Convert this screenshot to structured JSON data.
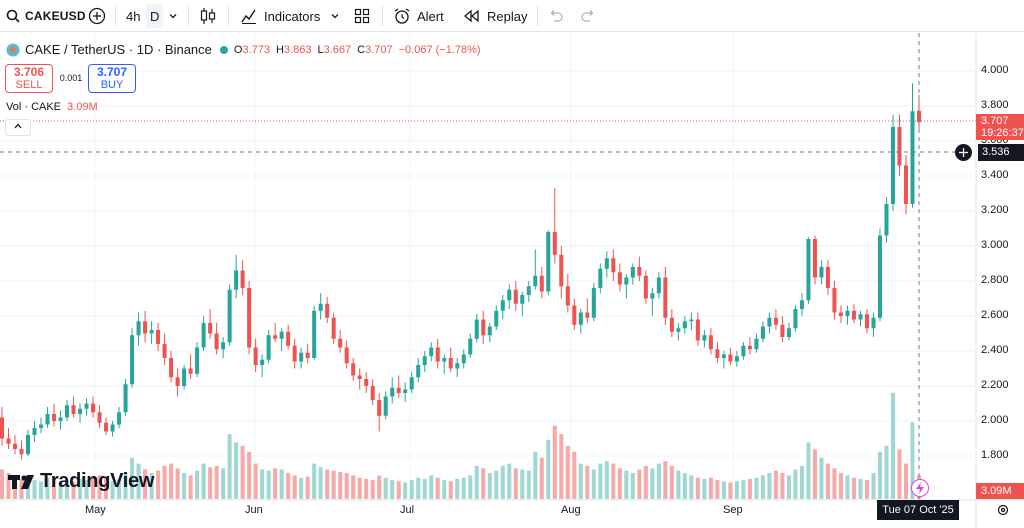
{
  "toolbar": {
    "symbol": "CAKEUSD",
    "interval": "4h",
    "interval_active": "D",
    "indicators_label": "Indicators",
    "alert_label": "Alert",
    "replay_label": "Replay"
  },
  "legend": {
    "title": "CAKE / TetherUS · 1D · Binance",
    "open_label": "O",
    "open": "3.773",
    "high_label": "H",
    "high": "3.863",
    "low_label": "L",
    "low": "3.667",
    "close_label": "C",
    "close": "3.707",
    "change": "−0.067 (−1.78%)"
  },
  "trade": {
    "sell_price": "3.706",
    "sell_label": "SELL",
    "spread": "0.001",
    "buy_price": "3.707",
    "buy_label": "BUY"
  },
  "volume_legend": {
    "label": "Vol · CAKE",
    "value": "3.09M"
  },
  "price_axis": [
    "4.000",
    "3.800",
    "3.600",
    "3.400",
    "3.200",
    "3.000",
    "2.800",
    "2.600",
    "2.400",
    "2.200",
    "2.000",
    "1.800"
  ],
  "current_price": {
    "price": "3.707",
    "countdown": "19:26:37"
  },
  "crosshair_price": "3.536",
  "volume_tag": "3.09M",
  "time_axis": [
    "May",
    "Jun",
    "Jul",
    "Aug",
    "Sep"
  ],
  "crosshair_date": "Tue 07 Oct '25",
  "brand": "TradingView",
  "colors": {
    "up": "#26a69a",
    "down": "#ef5350",
    "up_volume": "#9fd7d2",
    "down_volume": "#f7a9a7"
  },
  "chart_data": {
    "type": "candlestick",
    "title": "CAKE / TetherUS · 1D · Binance",
    "ylim": [
      1.7,
      4.1
    ],
    "x_ticks": [
      "May",
      "Jun",
      "Jul",
      "Aug",
      "Sep"
    ],
    "candles_ohlc": [
      [
        2.02,
        2.08,
        1.86,
        1.9
      ],
      [
        1.9,
        1.96,
        1.84,
        1.87
      ],
      [
        1.87,
        1.92,
        1.81,
        1.84
      ],
      [
        1.84,
        1.89,
        1.78,
        1.81
      ],
      [
        1.81,
        1.95,
        1.8,
        1.92
      ],
      [
        1.92,
        2.0,
        1.88,
        1.96
      ],
      [
        1.96,
        2.02,
        1.93,
        1.98
      ],
      [
        1.98,
        2.08,
        1.96,
        2.04
      ],
      [
        2.04,
        2.1,
        1.97,
        2.0
      ],
      [
        2.0,
        2.06,
        1.95,
        2.02
      ],
      [
        2.02,
        2.12,
        2.0,
        2.09
      ],
      [
        2.09,
        2.14,
        2.02,
        2.04
      ],
      [
        2.04,
        2.1,
        1.99,
        2.07
      ],
      [
        2.07,
        2.13,
        2.03,
        2.1
      ],
      [
        2.1,
        2.14,
        2.02,
        2.05
      ],
      [
        2.05,
        2.09,
        1.96,
        1.99
      ],
      [
        1.99,
        2.02,
        1.92,
        1.94
      ],
      [
        1.94,
        2.0,
        1.91,
        1.98
      ],
      [
        1.98,
        2.08,
        1.96,
        2.05
      ],
      [
        2.05,
        2.24,
        2.03,
        2.21
      ],
      [
        2.21,
        2.53,
        2.19,
        2.49
      ],
      [
        2.49,
        2.62,
        2.43,
        2.57
      ],
      [
        2.57,
        2.63,
        2.45,
        2.5
      ],
      [
        2.5,
        2.57,
        2.44,
        2.52
      ],
      [
        2.52,
        2.56,
        2.4,
        2.44
      ],
      [
        2.44,
        2.5,
        2.32,
        2.36
      ],
      [
        2.36,
        2.4,
        2.22,
        2.25
      ],
      [
        2.25,
        2.3,
        2.14,
        2.2
      ],
      [
        2.2,
        2.32,
        2.18,
        2.3
      ],
      [
        2.3,
        2.38,
        2.24,
        2.27
      ],
      [
        2.27,
        2.45,
        2.25,
        2.42
      ],
      [
        2.42,
        2.6,
        2.4,
        2.56
      ],
      [
        2.56,
        2.64,
        2.47,
        2.5
      ],
      [
        2.5,
        2.56,
        2.38,
        2.41
      ],
      [
        2.41,
        2.48,
        2.36,
        2.45
      ],
      [
        2.45,
        2.78,
        2.43,
        2.75
      ],
      [
        2.75,
        2.95,
        2.7,
        2.86
      ],
      [
        2.86,
        2.92,
        2.72,
        2.76
      ],
      [
        2.76,
        2.8,
        2.38,
        2.42
      ],
      [
        2.42,
        2.47,
        2.28,
        2.32
      ],
      [
        2.32,
        2.38,
        2.25,
        2.35
      ],
      [
        2.35,
        2.52,
        2.33,
        2.49
      ],
      [
        2.49,
        2.56,
        2.45,
        2.47
      ],
      [
        2.47,
        2.53,
        2.4,
        2.51
      ],
      [
        2.51,
        2.55,
        2.41,
        2.43
      ],
      [
        2.43,
        2.47,
        2.3,
        2.34
      ],
      [
        2.34,
        2.42,
        2.3,
        2.39
      ],
      [
        2.39,
        2.44,
        2.33,
        2.36
      ],
      [
        2.36,
        2.66,
        2.35,
        2.63
      ],
      [
        2.63,
        2.73,
        2.58,
        2.67
      ],
      [
        2.67,
        2.71,
        2.56,
        2.59
      ],
      [
        2.59,
        2.62,
        2.44,
        2.47
      ],
      [
        2.47,
        2.52,
        2.39,
        2.42
      ],
      [
        2.42,
        2.46,
        2.3,
        2.33
      ],
      [
        2.33,
        2.36,
        2.23,
        2.26
      ],
      [
        2.26,
        2.3,
        2.18,
        2.24
      ],
      [
        2.24,
        2.28,
        2.16,
        2.2
      ],
      [
        2.2,
        2.24,
        2.09,
        2.12
      ],
      [
        2.12,
        2.16,
        1.94,
        2.03
      ],
      [
        2.03,
        2.17,
        2.01,
        2.14
      ],
      [
        2.14,
        2.25,
        2.1,
        2.19
      ],
      [
        2.19,
        2.26,
        2.13,
        2.16
      ],
      [
        2.16,
        2.22,
        2.11,
        2.18
      ],
      [
        2.18,
        2.28,
        2.16,
        2.25
      ],
      [
        2.25,
        2.36,
        2.22,
        2.32
      ],
      [
        2.32,
        2.4,
        2.28,
        2.37
      ],
      [
        2.37,
        2.45,
        2.34,
        2.42
      ],
      [
        2.42,
        2.47,
        2.3,
        2.34
      ],
      [
        2.34,
        2.38,
        2.27,
        2.36
      ],
      [
        2.36,
        2.42,
        2.28,
        2.3
      ],
      [
        2.3,
        2.36,
        2.25,
        2.33
      ],
      [
        2.33,
        2.41,
        2.3,
        2.38
      ],
      [
        2.38,
        2.5,
        2.36,
        2.47
      ],
      [
        2.47,
        2.61,
        2.45,
        2.58
      ],
      [
        2.58,
        2.63,
        2.44,
        2.49
      ],
      [
        2.49,
        2.56,
        2.45,
        2.54
      ],
      [
        2.54,
        2.66,
        2.52,
        2.63
      ],
      [
        2.63,
        2.72,
        2.58,
        2.69
      ],
      [
        2.69,
        2.78,
        2.64,
        2.75
      ],
      [
        2.75,
        2.8,
        2.63,
        2.67
      ],
      [
        2.67,
        2.74,
        2.6,
        2.72
      ],
      [
        2.72,
        2.8,
        2.68,
        2.77
      ],
      [
        2.77,
        2.98,
        2.75,
        2.83
      ],
      [
        2.83,
        2.88,
        2.7,
        2.74
      ],
      [
        2.74,
        3.09,
        2.72,
        3.08
      ],
      [
        3.08,
        3.33,
        2.9,
        2.95
      ],
      [
        2.95,
        3.0,
        2.7,
        2.77
      ],
      [
        2.77,
        2.84,
        2.62,
        2.66
      ],
      [
        2.66,
        2.7,
        2.52,
        2.55
      ],
      [
        2.55,
        2.64,
        2.5,
        2.62
      ],
      [
        2.62,
        2.7,
        2.56,
        2.59
      ],
      [
        2.59,
        2.79,
        2.57,
        2.76
      ],
      [
        2.76,
        2.9,
        2.73,
        2.87
      ],
      [
        2.87,
        2.97,
        2.82,
        2.93
      ],
      [
        2.93,
        2.98,
        2.8,
        2.85
      ],
      [
        2.85,
        2.9,
        2.74,
        2.78
      ],
      [
        2.78,
        2.84,
        2.7,
        2.82
      ],
      [
        2.82,
        2.9,
        2.78,
        2.88
      ],
      [
        2.88,
        2.94,
        2.8,
        2.83
      ],
      [
        2.83,
        2.86,
        2.67,
        2.7
      ],
      [
        2.7,
        2.76,
        2.6,
        2.73
      ],
      [
        2.73,
        2.85,
        2.7,
        2.82
      ],
      [
        2.82,
        2.88,
        2.55,
        2.59
      ],
      [
        2.59,
        2.64,
        2.48,
        2.51
      ],
      [
        2.51,
        2.56,
        2.46,
        2.53
      ],
      [
        2.53,
        2.6,
        2.5,
        2.57
      ],
      [
        2.57,
        2.62,
        2.52,
        2.58
      ],
      [
        2.58,
        2.62,
        2.43,
        2.46
      ],
      [
        2.46,
        2.52,
        2.42,
        2.49
      ],
      [
        2.49,
        2.53,
        2.38,
        2.41
      ],
      [
        2.41,
        2.45,
        2.33,
        2.36
      ],
      [
        2.36,
        2.4,
        2.3,
        2.38
      ],
      [
        2.38,
        2.42,
        2.32,
        2.34
      ],
      [
        2.34,
        2.4,
        2.31,
        2.37
      ],
      [
        2.37,
        2.45,
        2.35,
        2.43
      ],
      [
        2.43,
        2.48,
        2.38,
        2.41
      ],
      [
        2.41,
        2.5,
        2.39,
        2.47
      ],
      [
        2.47,
        2.57,
        2.45,
        2.54
      ],
      [
        2.54,
        2.62,
        2.5,
        2.59
      ],
      [
        2.59,
        2.64,
        2.52,
        2.55
      ],
      [
        2.55,
        2.6,
        2.45,
        2.48
      ],
      [
        2.48,
        2.56,
        2.46,
        2.53
      ],
      [
        2.53,
        2.66,
        2.51,
        2.64
      ],
      [
        2.64,
        2.73,
        2.6,
        2.69
      ],
      [
        2.69,
        3.05,
        2.67,
        3.04
      ],
      [
        3.04,
        3.06,
        2.78,
        2.82
      ],
      [
        2.82,
        2.92,
        2.78,
        2.88
      ],
      [
        2.88,
        2.92,
        2.72,
        2.76
      ],
      [
        2.76,
        2.8,
        2.58,
        2.62
      ],
      [
        2.62,
        2.66,
        2.56,
        2.6
      ],
      [
        2.6,
        2.66,
        2.55,
        2.63
      ],
      [
        2.63,
        2.67,
        2.56,
        2.58
      ],
      [
        2.58,
        2.63,
        2.54,
        2.61
      ],
      [
        2.61,
        2.64,
        2.5,
        2.53
      ],
      [
        2.53,
        2.62,
        2.48,
        2.59
      ],
      [
        2.59,
        3.1,
        2.57,
        3.06
      ],
      [
        3.06,
        3.28,
        3.02,
        3.24
      ],
      [
        3.24,
        3.75,
        3.2,
        3.68
      ],
      [
        3.68,
        3.75,
        3.4,
        3.46
      ],
      [
        3.46,
        3.52,
        3.18,
        3.24
      ],
      [
        3.24,
        3.93,
        3.22,
        3.77
      ],
      [
        3.773,
        3.863,
        3.667,
        3.707
      ]
    ],
    "volume_relative": [
      0.25,
      0.22,
      0.18,
      0.17,
      0.2,
      0.16,
      0.15,
      0.18,
      0.17,
      0.14,
      0.16,
      0.15,
      0.17,
      0.16,
      0.18,
      0.2,
      0.19,
      0.15,
      0.17,
      0.22,
      0.35,
      0.3,
      0.25,
      0.22,
      0.24,
      0.28,
      0.3,
      0.26,
      0.22,
      0.2,
      0.24,
      0.3,
      0.27,
      0.28,
      0.26,
      0.55,
      0.48,
      0.45,
      0.4,
      0.3,
      0.25,
      0.24,
      0.26,
      0.25,
      0.22,
      0.2,
      0.18,
      0.19,
      0.3,
      0.27,
      0.25,
      0.24,
      0.23,
      0.22,
      0.2,
      0.18,
      0.17,
      0.16,
      0.2,
      0.18,
      0.16,
      0.15,
      0.14,
      0.16,
      0.18,
      0.17,
      0.2,
      0.18,
      0.16,
      0.15,
      0.17,
      0.18,
      0.2,
      0.28,
      0.26,
      0.22,
      0.24,
      0.28,
      0.3,
      0.26,
      0.25,
      0.24,
      0.4,
      0.35,
      0.5,
      0.62,
      0.55,
      0.45,
      0.4,
      0.3,
      0.28,
      0.25,
      0.3,
      0.32,
      0.3,
      0.26,
      0.24,
      0.22,
      0.25,
      0.28,
      0.26,
      0.3,
      0.32,
      0.28,
      0.24,
      0.22,
      0.2,
      0.18,
      0.17,
      0.18,
      0.16,
      0.15,
      0.14,
      0.15,
      0.16,
      0.17,
      0.18,
      0.2,
      0.22,
      0.24,
      0.22,
      0.2,
      0.25,
      0.28,
      0.48,
      0.42,
      0.35,
      0.3,
      0.26,
      0.22,
      0.2,
      0.18,
      0.17,
      0.16,
      0.22,
      0.4,
      0.45,
      0.9,
      0.42,
      0.3,
      0.65,
      0.2
    ]
  }
}
